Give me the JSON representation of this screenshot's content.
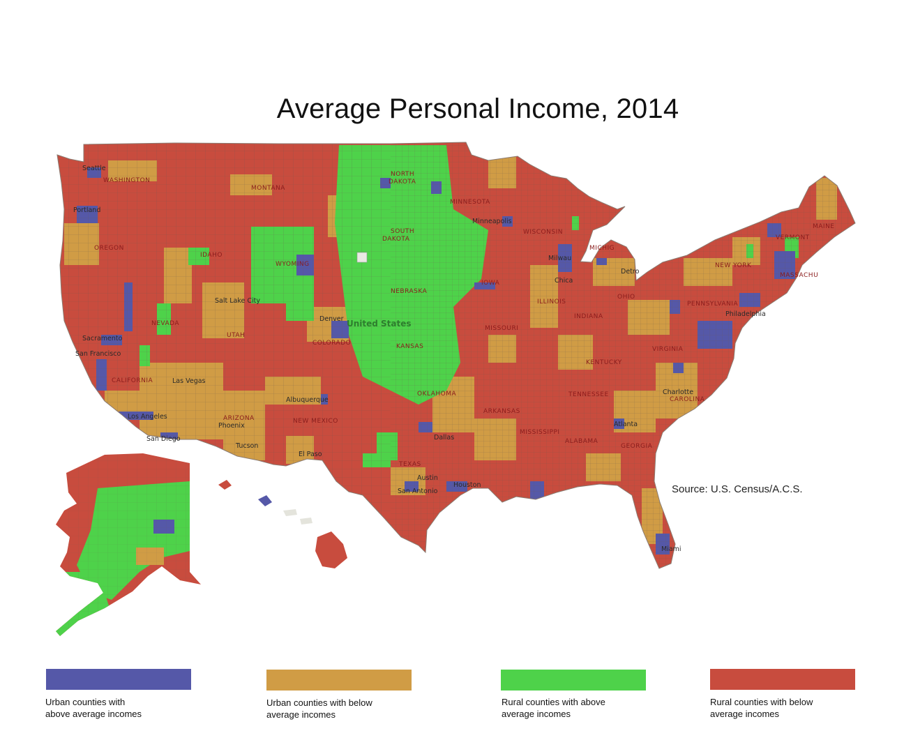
{
  "title": "Average Personal Income, 2014",
  "source": "Source: U.S. Census/A.C.S.",
  "colors": {
    "urban_above": "#5558a8",
    "urban_below": "#d09c45",
    "rural_above": "#4ed24a",
    "rural_below": "#c84c3e",
    "ocean": "#ffffff",
    "county_line": "#5a5a5a"
  },
  "legend": [
    {
      "label_1": "Urban counties with",
      "label_2": "above average incomes",
      "color": "#5558a8"
    },
    {
      "label_1": "Urban counties with  below",
      "label_2": "average incomes",
      "color": "#d09c45"
    },
    {
      "label_1": "Rural counties with above",
      "label_2": "average incomes",
      "color": "#4ed24a"
    },
    {
      "label_1": "Rural counties with below",
      "label_2": "average incomes",
      "color": "#c84c3e"
    }
  ],
  "state_labels": {
    "washington": "WASHINGTON",
    "montana": "MONTANA",
    "north_dakota_1": "NORTH",
    "north_dakota_2": "DAKOTA",
    "minnesota": "MINNESOTA",
    "south_dakota_1": "SOUTH",
    "south_dakota_2": "DAKOTA",
    "oregon": "OREGON",
    "idaho": "IDAHO",
    "wyoming": "WYOMING",
    "nebraska": "NEBRASKA",
    "iowa": "IOWA",
    "wisconsin": "WISCONSIN",
    "michigan": "MICHIG",
    "nevada": "NEVADA",
    "utah": "UTAH",
    "colorado": "COLORADO",
    "kansas": "KANSAS",
    "missouri": "MISSOURI",
    "illinois": "ILLINOIS",
    "indiana": "INDIANA",
    "ohio": "OHIO",
    "pennsylvania": "PENNSYLVANIA",
    "new_york": "NEW YORK",
    "vermont": "VERMONT",
    "maine": "MAINE",
    "california": "CALIFORNIA",
    "arizona": "ARIZONA",
    "new_mexico": "NEW MEXICO",
    "oklahoma": "OKLAHOMA",
    "arkansas": "ARKANSAS",
    "tennessee": "TENNESSEE",
    "kentucky": "KENTUCKY",
    "virginia": "VIRGINIA",
    "north_carolina": "CAROLINA",
    "mississippi": "MISSISSIPPI",
    "alabama": "ALABAMA",
    "georgia": "GEORGIA",
    "texas": "TEXAS",
    "massachusetts": "MASSACHU",
    "country": "United States"
  },
  "city_labels": {
    "seattle": "Seattle",
    "portland": "Portland",
    "minneapolis": "Minneapolis",
    "milwaukee": "Milwau",
    "detroit": "Detro",
    "chicago": "Chica",
    "salt_lake_city": "Salt Lake City",
    "denver": "Denver",
    "sacramento": "Sacramento",
    "san_francisco": "San Francisco",
    "las_vegas": "Las Vegas",
    "los_angeles": "Los Angeles",
    "san_diego": "San Diego",
    "phoenix": "Phoenix",
    "tucson": "Tucson",
    "albuquerque": "Albuquerque",
    "el_paso": "El Paso",
    "dallas": "Dallas",
    "austin": "Austin",
    "san_antonio": "San Antonio",
    "houston": "Houston",
    "philadelphia": "Philadelphia",
    "charlotte": "Charlotte",
    "atlanta": "Atlanta",
    "miami": "Miami"
  }
}
